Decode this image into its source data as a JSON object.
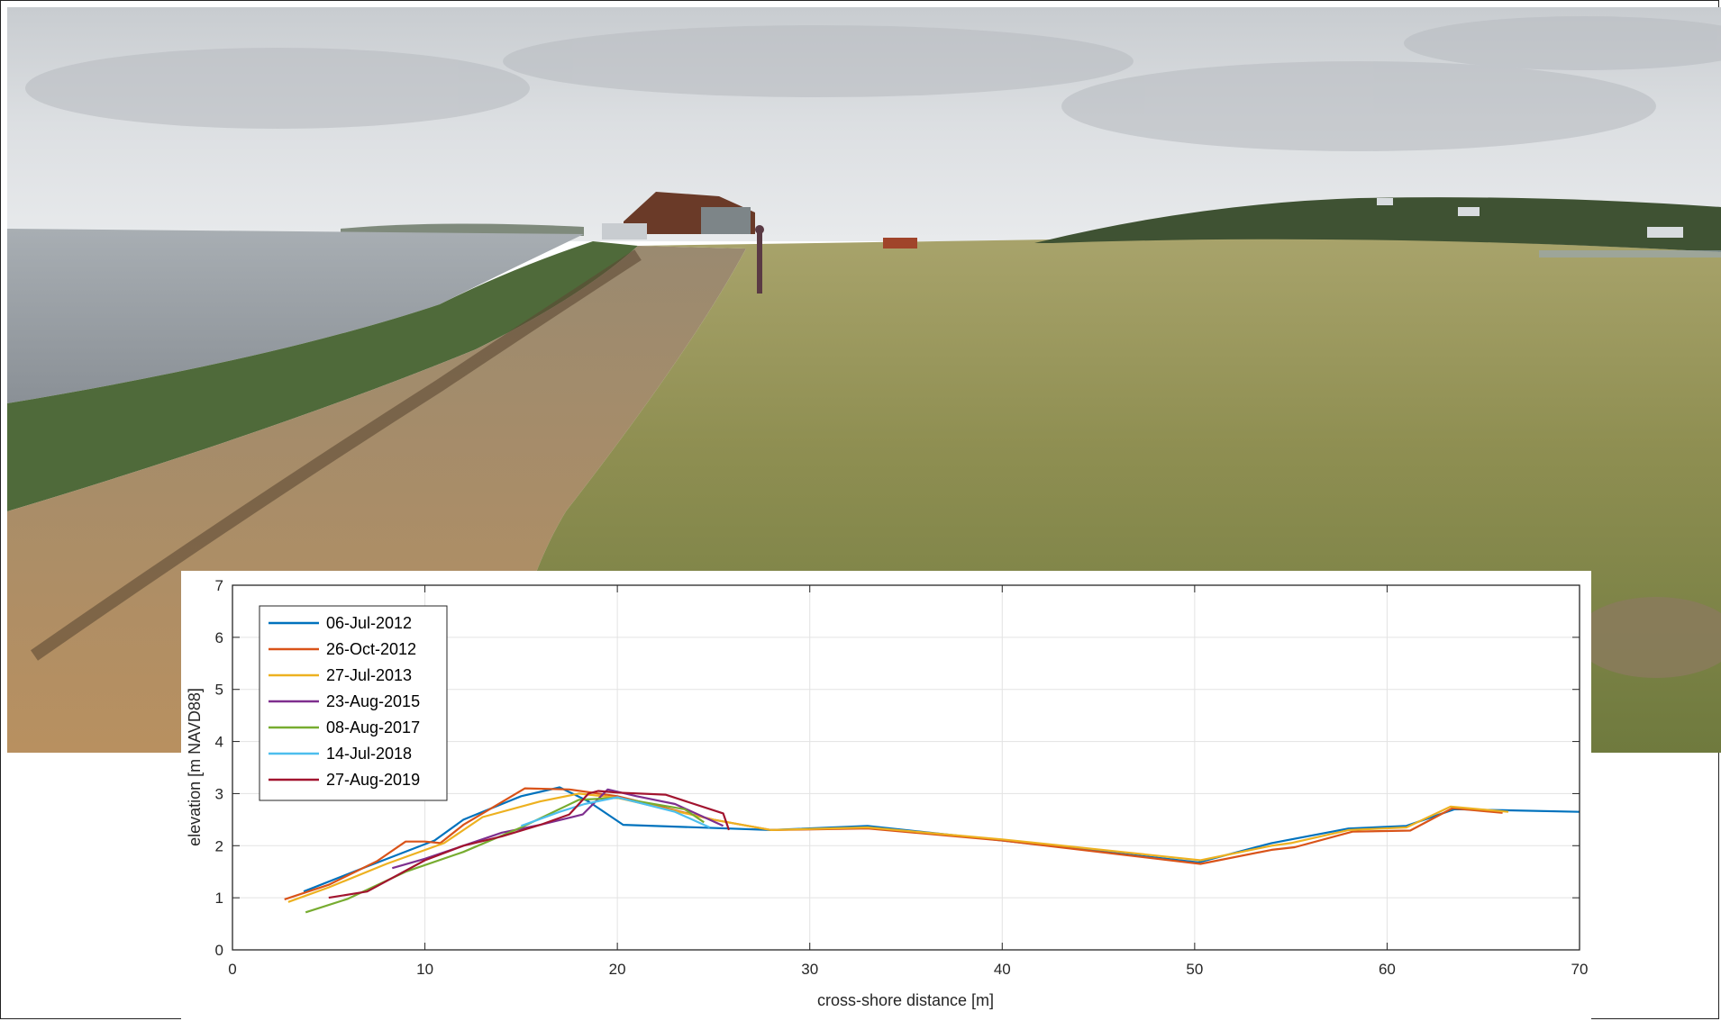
{
  "chart_data": {
    "type": "line",
    "xlabel": "cross-shore distance [m]",
    "ylabel": "elevation [m NAVD88]",
    "xlim": [
      0,
      70
    ],
    "ylim": [
      0,
      7
    ],
    "xticks": [
      "0",
      "10",
      "20",
      "30",
      "40",
      "50",
      "60",
      "70"
    ],
    "yticks": [
      "0",
      "1",
      "2",
      "3",
      "4",
      "5",
      "6",
      "7"
    ],
    "grid": true,
    "legend_position": "top-left",
    "background": "photo of eroding coastal bluff with grass, beach and damaged building",
    "series": [
      {
        "name": "06-Jul-2012",
        "color": "#0072BD",
        "x": [
          3.7,
          7,
          10.5,
          12,
          15,
          17,
          18.5,
          20.3,
          28,
          33,
          40,
          50.2,
          54,
          58,
          61,
          63.5,
          66,
          70
        ],
        "y": [
          1.12,
          1.6,
          2.1,
          2.5,
          2.95,
          3.12,
          2.85,
          2.4,
          2.3,
          2.38,
          2.1,
          1.68,
          2.05,
          2.33,
          2.38,
          2.7,
          2.68,
          2.65
        ]
      },
      {
        "name": "26-Oct-2012",
        "color": "#D95319",
        "x": [
          2.7,
          5,
          7.5,
          9,
          10,
          10.8,
          12,
          15.2,
          17.5,
          20,
          25,
          28,
          33,
          40,
          50.3,
          54,
          55.2,
          58.2,
          61.2,
          63.4,
          66
        ],
        "y": [
          0.97,
          1.25,
          1.7,
          2.08,
          2.08,
          2.05,
          2.4,
          3.1,
          3.08,
          2.95,
          2.5,
          2.3,
          2.33,
          2.1,
          1.65,
          1.92,
          1.97,
          2.27,
          2.29,
          2.72,
          2.63
        ]
      },
      {
        "name": "27-Jul-2013",
        "color": "#EDB120",
        "x": [
          2.9,
          5,
          8,
          11,
          13,
          16,
          18,
          20,
          25,
          28,
          33,
          40,
          50.3,
          54,
          55,
          58,
          61,
          63.3,
          66.3
        ],
        "y": [
          0.92,
          1.2,
          1.65,
          2.05,
          2.55,
          2.85,
          3.0,
          2.92,
          2.5,
          2.3,
          2.35,
          2.12,
          1.72,
          2.0,
          2.05,
          2.3,
          2.35,
          2.75,
          2.65
        ]
      },
      {
        "name": "23-Aug-2015",
        "color": "#7E2F8E",
        "x": [
          8.3,
          10,
          12,
          14,
          16,
          18.2,
          19.5,
          21,
          23,
          25.5
        ],
        "y": [
          1.57,
          1.75,
          2.0,
          2.25,
          2.4,
          2.6,
          3.08,
          2.95,
          2.8,
          2.38
        ]
      },
      {
        "name": "08-Aug-2017",
        "color": "#77AC30",
        "x": [
          3.8,
          6,
          9,
          12,
          15,
          18,
          20,
          23.5,
          24.5
        ],
        "y": [
          0.72,
          0.98,
          1.5,
          1.88,
          2.35,
          2.88,
          2.92,
          2.7,
          2.45
        ]
      },
      {
        "name": "14-Jul-2018",
        "color": "#4DBEEE",
        "x": [
          15,
          17,
          18.3,
          20,
          23,
          24.8
        ],
        "y": [
          2.38,
          2.65,
          2.8,
          2.93,
          2.65,
          2.35
        ]
      },
      {
        "name": "27-Aug-2019",
        "color": "#A2142F",
        "x": [
          5,
          7,
          10,
          12,
          14,
          16,
          17.5,
          18.5,
          19,
          20,
          22.5,
          25.5,
          25.8
        ],
        "y": [
          1.0,
          1.12,
          1.72,
          2.0,
          2.18,
          2.4,
          2.6,
          3.0,
          3.05,
          3.02,
          2.98,
          2.62,
          2.3
        ]
      }
    ]
  }
}
